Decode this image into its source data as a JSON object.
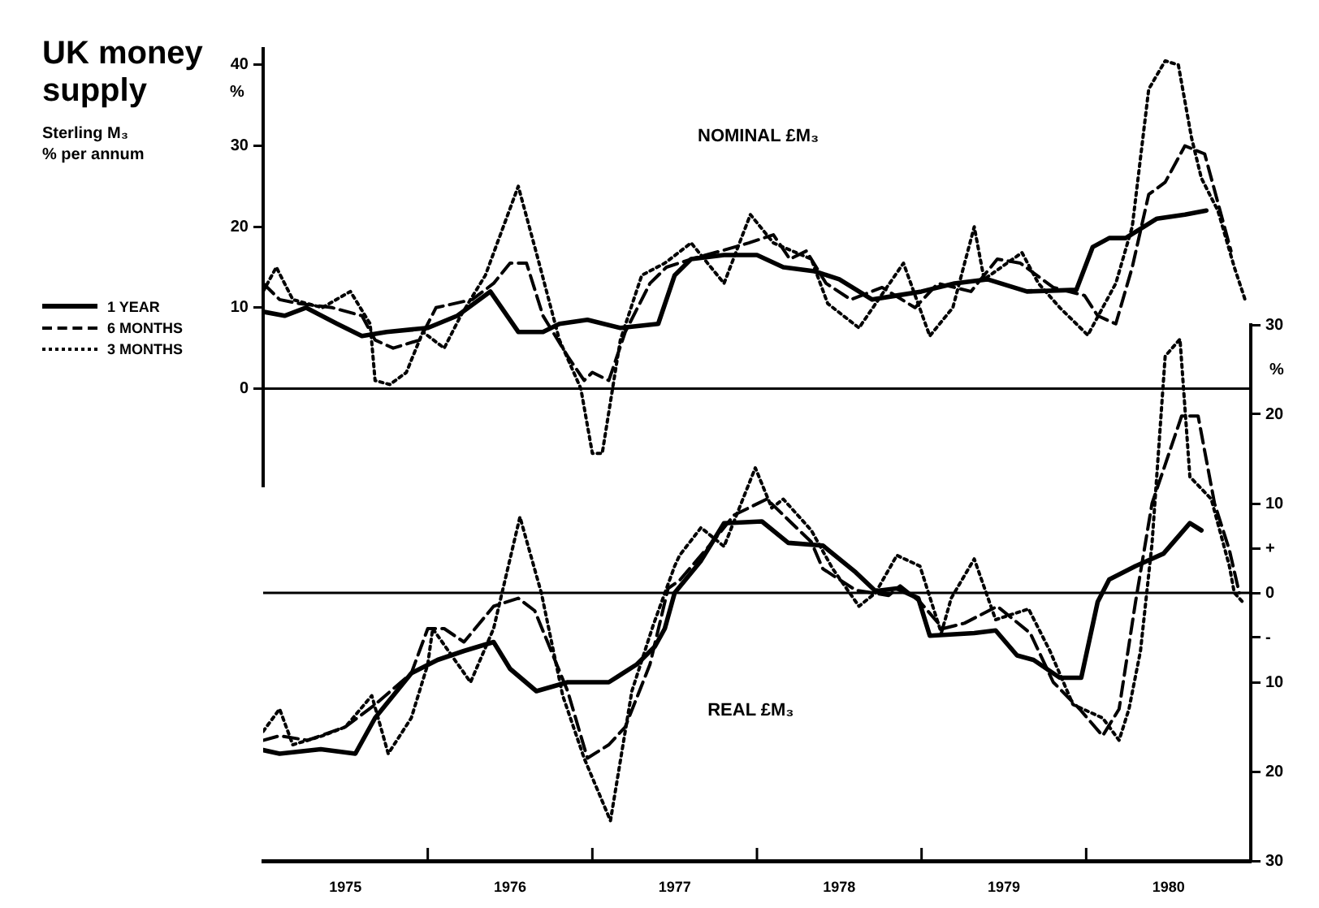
{
  "chart_data": [
    {
      "type": "line",
      "title": "UK money supply",
      "subtitle": "Sterling M₃\n% per annum",
      "ylabel": "%",
      "annotations": [
        "NOMINAL £M₃"
      ],
      "legend": "left",
      "tick_labels": "y",
      "xlim": [
        1975,
        1981
      ],
      "ylim": [
        -12,
        42
      ],
      "yticks": [
        0,
        10,
        20,
        30,
        40
      ],
      "ref_lines": [
        {
          "axis": "y",
          "value": 0
        }
      ],
      "series": [
        {
          "name": "1 YEAR",
          "color": "#000000",
          "line_style": "solid",
          "x": [
            1975.0,
            1975.13,
            1975.26,
            1975.45,
            1975.6,
            1975.75,
            1976.0,
            1976.18,
            1976.38,
            1976.55,
            1976.7,
            1976.8,
            1976.97,
            1977.17,
            1977.4,
            1977.5,
            1977.6,
            1977.8,
            1978.0,
            1978.16,
            1978.35,
            1978.5,
            1978.7,
            1978.85,
            1979.0,
            1979.2,
            1979.4,
            1979.64,
            1979.94,
            1980.04,
            1980.14,
            1980.24,
            1980.43,
            1980.6,
            1980.73
          ],
          "values": [
            9.5,
            9,
            10,
            8,
            6.5,
            7,
            7.5,
            9,
            12,
            7,
            7,
            8,
            8.5,
            7.5,
            8,
            14,
            16,
            16.5,
            16.5,
            15,
            14.5,
            13.5,
            11,
            11.5,
            12,
            13,
            13.5,
            12,
            12.2,
            17.5,
            18.6,
            18.6,
            21,
            21.5,
            22
          ]
        },
        {
          "name": "6 MONTHS",
          "color": "#000000",
          "line_style": "dashed",
          "x": [
            1975.0,
            1975.1,
            1975.22,
            1975.42,
            1975.6,
            1975.68,
            1975.79,
            1975.95,
            1976.05,
            1976.27,
            1976.4,
            1976.5,
            1976.6,
            1976.7,
            1976.85,
            1976.95,
            1977.0,
            1977.1,
            1977.2,
            1977.35,
            1977.45,
            1977.6,
            1977.78,
            1977.95,
            1978.1,
            1978.2,
            1978.3,
            1978.42,
            1978.57,
            1978.76,
            1978.96,
            1979.1,
            1979.3,
            1979.46,
            1979.6,
            1979.8,
            1979.99,
            1980.07,
            1980.18,
            1980.28,
            1980.38,
            1980.48,
            1980.6,
            1980.72,
            1980.82,
            1980.88
          ],
          "values": [
            13,
            11,
            10.5,
            10,
            9,
            6,
            5,
            6,
            10,
            11,
            13,
            15.5,
            15.5,
            9,
            4,
            1,
            2,
            1,
            7,
            13,
            15,
            16,
            17,
            18,
            19,
            16,
            17,
            13,
            11,
            12.5,
            10,
            13,
            12,
            16,
            15.5,
            12.5,
            11.5,
            9,
            8,
            15,
            24,
            25.5,
            30,
            29,
            21.5,
            17
          ]
        },
        {
          "name": "3 MONTHS",
          "color": "#000000",
          "line_style": "dotted",
          "x": [
            1975.0,
            1975.08,
            1975.18,
            1975.36,
            1975.53,
            1975.65,
            1975.68,
            1975.77,
            1975.87,
            1975.97,
            1976.1,
            1976.2,
            1976.35,
            1976.55,
            1976.67,
            1976.8,
            1976.93,
            1977.0,
            1977.06,
            1977.17,
            1977.3,
            1977.44,
            1977.6,
            1977.8,
            1977.96,
            1978.1,
            1978.33,
            1978.43,
            1978.62,
            1978.89,
            1979.05,
            1979.19,
            1979.32,
            1979.38,
            1979.61,
            1979.71,
            1979.84,
            1980.01,
            1980.18,
            1980.28,
            1980.38,
            1980.48,
            1980.56,
            1980.64,
            1980.7,
            1980.8,
            1980.9,
            1980.97
          ],
          "values": [
            12,
            15,
            11,
            10,
            12,
            8,
            1,
            0.5,
            2,
            7,
            5,
            9,
            14,
            25,
            16,
            6,
            0,
            -8,
            -8,
            6,
            14,
            15.5,
            18,
            13,
            21.5,
            18,
            16,
            10.5,
            7.5,
            15.5,
            6.5,
            10,
            20,
            13.5,
            16.8,
            13,
            10,
            6.6,
            13,
            20,
            37,
            40.5,
            40,
            31,
            26,
            22,
            15,
            10.7
          ]
        }
      ]
    },
    {
      "type": "line",
      "y2label": "%",
      "annotations": [
        "REAL £M₃"
      ],
      "xlim": [
        1975,
        1981
      ],
      "xticks": [
        {
          "value": 1975.5,
          "label": "1975"
        },
        {
          "value": 1976,
          "label": null
        },
        {
          "value": 1976.5,
          "label": "1976"
        },
        {
          "value": 1977,
          "label": null
        },
        {
          "value": 1977.5,
          "label": "1977"
        },
        {
          "value": 1978,
          "label": null
        },
        {
          "value": 1978.5,
          "label": "1978"
        },
        {
          "value": 1979,
          "label": null
        },
        {
          "value": 1979.5,
          "label": "1979"
        },
        {
          "value": 1980,
          "label": null
        },
        {
          "value": 1980.5,
          "label": "1980"
        }
      ],
      "y2lim": [
        -30,
        30
      ],
      "y2ticks": [
        30,
        20,
        10,
        {
          "value": 5,
          "label": "+"
        },
        0,
        {
          "value": -5,
          "label": "-"
        },
        {
          "value": -10,
          "label": "10"
        },
        {
          "value": -20,
          "label": "20"
        },
        {
          "value": -30,
          "label": "30"
        }
      ],
      "ref_lines": [
        {
          "axis": "y2",
          "value": 0
        }
      ],
      "series": [
        {
          "color": "#000000",
          "line_style": "solid",
          "axis": "y2",
          "x": [
            1975.0,
            1975.1,
            1975.35,
            1975.56,
            1975.68,
            1975.9,
            1976.06,
            1976.22,
            1976.4,
            1976.5,
            1976.66,
            1976.85,
            1977.1,
            1977.27,
            1977.38,
            1977.44,
            1977.5,
            1977.66,
            1977.8,
            1978.03,
            1978.19,
            1978.4,
            1978.6,
            1978.72,
            1978.85,
            1978.98,
            1979.05,
            1979.32,
            1979.45,
            1979.58,
            1979.68,
            1979.84,
            1979.97,
            1980.07,
            1980.14,
            1980.3,
            1980.47,
            1980.63,
            1980.7
          ],
          "values": [
            -17.6,
            -18,
            -17.5,
            -18,
            -14,
            -9,
            -7.5,
            -6.5,
            -5.5,
            -8.5,
            -11,
            -10,
            -10,
            -8,
            -6,
            -4,
            0,
            3.6,
            7.8,
            8,
            5.6,
            5.3,
            2.3,
            0.2,
            0.5,
            -0.6,
            -4.8,
            -4.5,
            -4.2,
            -7,
            -7.5,
            -9.5,
            -9.5,
            -1,
            1.5,
            3,
            4.4,
            7.8,
            7
          ]
        },
        {
          "color": "#000000",
          "line_style": "dashed",
          "axis": "y2",
          "x": [
            1975.0,
            1975.1,
            1975.27,
            1975.5,
            1975.68,
            1975.9,
            1976.0,
            1976.1,
            1976.22,
            1976.4,
            1976.55,
            1976.65,
            1976.85,
            1976.97,
            1977.1,
            1977.2,
            1977.35,
            1977.46,
            1977.53,
            1977.73,
            1977.86,
            1978.06,
            1978.2,
            1978.33,
            1978.4,
            1978.6,
            1978.8,
            1978.87,
            1978.99,
            1979.13,
            1979.26,
            1979.46,
            1979.66,
            1979.8,
            1979.96,
            1980.1,
            1980.2,
            1980.3,
            1980.4,
            1980.58,
            1980.68,
            1980.78,
            1980.87,
            1980.93
          ],
          "values": [
            -16.5,
            -16,
            -16.5,
            -15,
            -12.5,
            -9,
            -4,
            -4,
            -5.5,
            -1.5,
            -0.6,
            -2,
            -11,
            -18.5,
            -17,
            -15,
            -8,
            0.5,
            1.4,
            5.7,
            8.7,
            10.5,
            8,
            5.7,
            2.7,
            0.3,
            -0.3,
            0.8,
            -1,
            -4,
            -3.4,
            -1.5,
            -4.5,
            -10,
            -13,
            -16,
            -13,
            -1,
            10,
            19.8,
            19.8,
            10,
            4.8,
            0
          ]
        },
        {
          "color": "#000000",
          "line_style": "dotted",
          "axis": "y2",
          "x": [
            1975.0,
            1975.1,
            1975.18,
            1975.36,
            1975.5,
            1975.66,
            1975.76,
            1975.9,
            1976.0,
            1976.03,
            1976.26,
            1976.4,
            1976.56,
            1976.69,
            1976.82,
            1976.95,
            1977.11,
            1977.24,
            1977.37,
            1977.5,
            1977.53,
            1977.66,
            1977.8,
            1977.99,
            1978.09,
            1978.16,
            1978.33,
            1978.46,
            1978.62,
            1978.72,
            1978.85,
            1978.99,
            1979.12,
            1979.18,
            1979.32,
            1979.45,
            1979.65,
            1979.78,
            1979.92,
            1980.1,
            1980.2,
            1980.26,
            1980.33,
            1980.4,
            1980.48,
            1980.57,
            1980.63,
            1980.76,
            1980.87,
            1980.9,
            1980.95
          ],
          "values": [
            -15.5,
            -13,
            -17,
            -16,
            -15,
            -11.5,
            -18,
            -14,
            -8,
            -4,
            -10,
            -4,
            8.5,
            0,
            -11.5,
            -18.5,
            -25.5,
            -11,
            -3.6,
            3,
            4.2,
            7.3,
            5.2,
            14,
            9.5,
            10.5,
            7,
            2.7,
            -1.5,
            0,
            4.2,
            3,
            -4.5,
            -0.6,
            3.8,
            -3,
            -1.8,
            -6.5,
            -12.5,
            -14,
            -16.5,
            -13,
            -6.5,
            5.5,
            26.5,
            28.4,
            13,
            10.5,
            3,
            0,
            -1
          ]
        }
      ]
    }
  ]
}
